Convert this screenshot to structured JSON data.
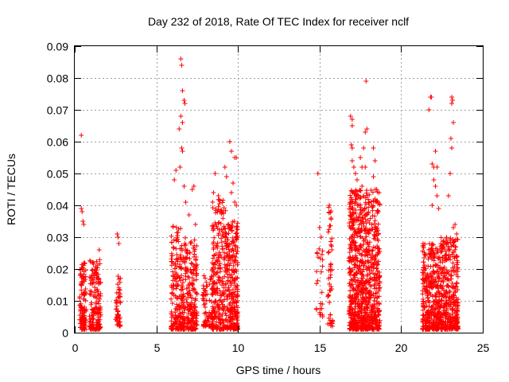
{
  "chart_data": {
    "type": "scatter",
    "title": "Day 232 of 2018, Rate Of TEC Index for receiver nclf",
    "xlabel": "GPS time / hours",
    "ylabel": "ROTI / TECUs",
    "xlim": [
      0,
      25
    ],
    "ylim": [
      0,
      0.09
    ],
    "xticks": [
      0,
      5,
      10,
      15,
      20,
      25
    ],
    "yticks": [
      0,
      0.01,
      0.02,
      0.03,
      0.04,
      0.05,
      0.06,
      0.07,
      0.08,
      0.09
    ],
    "xtick_labels": [
      "0",
      "5",
      "10",
      "15",
      "20",
      "25"
    ],
    "ytick_labels": [
      "0",
      "0.01",
      "0.02",
      "0.03",
      "0.04",
      "0.05",
      "0.06",
      "0.07",
      "0.08",
      "0.09"
    ],
    "grid": true,
    "marker": "+",
    "color": "#ff0000",
    "clusters": [
      {
        "x": [
          0.3,
          0.7
        ],
        "core": [
          0.001,
          0.022
        ],
        "n": 120
      },
      {
        "x": [
          0.9,
          1.6
        ],
        "core": [
          0.001,
          0.023
        ],
        "n": 160
      },
      {
        "x": [
          2.5,
          2.8
        ],
        "core": [
          0.002,
          0.018
        ],
        "n": 50
      },
      {
        "x": [
          5.9,
          6.5
        ],
        "core": [
          0.001,
          0.035
        ],
        "n": 150
      },
      {
        "x": [
          6.5,
          7.5
        ],
        "core": [
          0.001,
          0.03
        ],
        "n": 260
      },
      {
        "x": [
          7.8,
          8.5
        ],
        "core": [
          0.002,
          0.018
        ],
        "n": 80
      },
      {
        "x": [
          8.4,
          9.3
        ],
        "core": [
          0.001,
          0.042
        ],
        "n": 260
      },
      {
        "x": [
          9.3,
          10.0
        ],
        "core": [
          0.001,
          0.035
        ],
        "n": 260
      },
      {
        "x": [
          14.8,
          15.2
        ],
        "core": [
          0.005,
          0.028
        ],
        "n": 25
      },
      {
        "x": [
          15.5,
          15.8
        ],
        "core": [
          0.002,
          0.04
        ],
        "n": 50
      },
      {
        "x": [
          16.8,
          17.6
        ],
        "core": [
          0.001,
          0.045
        ],
        "n": 420
      },
      {
        "x": [
          17.6,
          18.7
        ],
        "core": [
          0.001,
          0.045
        ],
        "n": 460
      },
      {
        "x": [
          21.3,
          22.4
        ],
        "core": [
          0.001,
          0.028
        ],
        "n": 360
      },
      {
        "x": [
          22.4,
          23.5
        ],
        "core": [
          0.001,
          0.03
        ],
        "n": 360
      }
    ],
    "points": [
      [
        0.4,
        0.062
      ],
      [
        0.4,
        0.039
      ],
      [
        0.45,
        0.038
      ],
      [
        0.5,
        0.035
      ],
      [
        0.55,
        0.034
      ],
      [
        1.1,
        0.022
      ],
      [
        1.5,
        0.026
      ],
      [
        2.6,
        0.031
      ],
      [
        2.65,
        0.03
      ],
      [
        2.7,
        0.028
      ],
      [
        6.1,
        0.048
      ],
      [
        6.2,
        0.051
      ],
      [
        6.5,
        0.086
      ],
      [
        6.55,
        0.084
      ],
      [
        6.6,
        0.076
      ],
      [
        6.7,
        0.073
      ],
      [
        6.75,
        0.072
      ],
      [
        6.5,
        0.068
      ],
      [
        6.6,
        0.066
      ],
      [
        6.4,
        0.064
      ],
      [
        6.55,
        0.058
      ],
      [
        6.6,
        0.057
      ],
      [
        6.45,
        0.052
      ],
      [
        6.7,
        0.046
      ],
      [
        6.8,
        0.041
      ],
      [
        7.2,
        0.045
      ],
      [
        7.3,
        0.046
      ],
      [
        7.0,
        0.037
      ],
      [
        7.4,
        0.034
      ],
      [
        8.6,
        0.05
      ],
      [
        8.5,
        0.044
      ],
      [
        8.8,
        0.043
      ],
      [
        9.0,
        0.038
      ],
      [
        9.2,
        0.052
      ],
      [
        9.3,
        0.049
      ],
      [
        9.5,
        0.06
      ],
      [
        9.6,
        0.057
      ],
      [
        9.8,
        0.055
      ],
      [
        9.9,
        0.055
      ],
      [
        9.7,
        0.047
      ],
      [
        9.6,
        0.044
      ],
      [
        9.8,
        0.041
      ],
      [
        9.9,
        0.04
      ],
      [
        14.9,
        0.05
      ],
      [
        15.0,
        0.033
      ],
      [
        15.1,
        0.03
      ],
      [
        15.6,
        0.04
      ],
      [
        15.7,
        0.036
      ],
      [
        16.9,
        0.068
      ],
      [
        17.0,
        0.067
      ],
      [
        17.0,
        0.065
      ],
      [
        16.95,
        0.059
      ],
      [
        17.0,
        0.054
      ],
      [
        17.0,
        0.058
      ],
      [
        17.1,
        0.052
      ],
      [
        17.2,
        0.05
      ],
      [
        17.3,
        0.048
      ],
      [
        17.1,
        0.044
      ],
      [
        17.5,
        0.055
      ],
      [
        17.6,
        0.052
      ],
      [
        17.85,
        0.079
      ],
      [
        17.8,
        0.063
      ],
      [
        17.9,
        0.064
      ],
      [
        17.7,
        0.058
      ],
      [
        17.8,
        0.052
      ],
      [
        17.6,
        0.046
      ],
      [
        18.3,
        0.058
      ],
      [
        18.4,
        0.054
      ],
      [
        18.3,
        0.049
      ],
      [
        18.5,
        0.045
      ],
      [
        18.4,
        0.042
      ],
      [
        18.6,
        0.038
      ],
      [
        18.2,
        0.04
      ],
      [
        21.8,
        0.074
      ],
      [
        21.85,
        0.074
      ],
      [
        21.7,
        0.07
      ],
      [
        21.9,
        0.053
      ],
      [
        22.0,
        0.052
      ],
      [
        22.1,
        0.057
      ],
      [
        22.2,
        0.052
      ],
      [
        22.0,
        0.048
      ],
      [
        22.1,
        0.046
      ],
      [
        22.2,
        0.043
      ],
      [
        22.3,
        0.039
      ],
      [
        21.9,
        0.04
      ],
      [
        23.1,
        0.074
      ],
      [
        23.15,
        0.073
      ],
      [
        23.1,
        0.072
      ],
      [
        23.2,
        0.066
      ],
      [
        23.05,
        0.061
      ],
      [
        23.1,
        0.058
      ],
      [
        23.0,
        0.05
      ],
      [
        22.9,
        0.043
      ],
      [
        23.3,
        0.034
      ],
      [
        23.2,
        0.033
      ],
      [
        23.4,
        0.031
      ]
    ]
  }
}
